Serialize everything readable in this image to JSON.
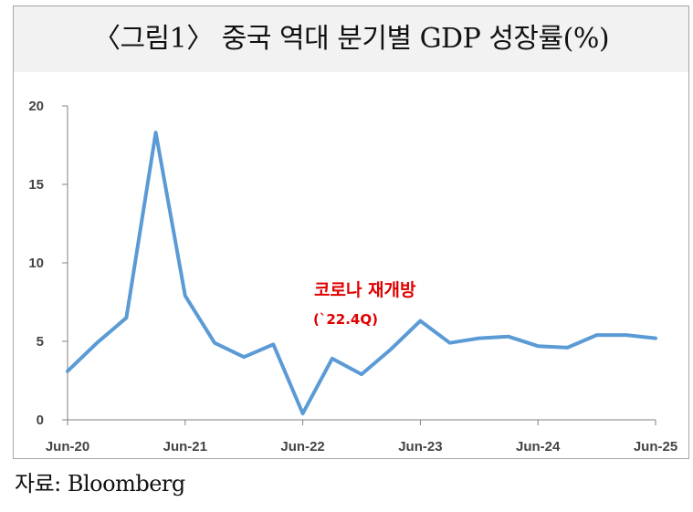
{
  "title": "〈그림1〉 중국 역대 분기별 GDP 성장률(%)",
  "source": "자료: Bloomberg",
  "colors": {
    "line": "#5b9bd5",
    "annotation": "#e00000",
    "axis": "#808080"
  },
  "chart_data": {
    "type": "line",
    "x": [
      "2020-06",
      "2020-09",
      "2020-12",
      "2021-03",
      "2021-06",
      "2021-09",
      "2021-12",
      "2022-03",
      "2022-06",
      "2022-09",
      "2022-12",
      "2023-03",
      "2023-06",
      "2023-09",
      "2023-12",
      "2024-03",
      "2024-06",
      "2024-09",
      "2024-12",
      "2025-03",
      "2025-06"
    ],
    "series": [
      {
        "values": [
          3.1,
          4.9,
          6.5,
          18.3,
          7.9,
          4.9,
          4.0,
          4.8,
          0.4,
          3.9,
          2.9,
          4.5,
          6.3,
          4.9,
          5.2,
          5.3,
          4.7,
          4.6,
          5.4,
          5.4,
          5.2
        ]
      }
    ],
    "ylim": [
      0,
      20
    ],
    "yticks": [
      0,
      5,
      10,
      15,
      20
    ],
    "xtick_labels": [
      "Jun-20",
      "Jun-21",
      "Jun-22",
      "Jun-23",
      "Jun-24",
      "Jun-25"
    ],
    "xtick_index": [
      0,
      4,
      8,
      12,
      16,
      20
    ],
    "annotations": [
      {
        "text": "코로나 재개방",
        "subtext": "(`22.4Q)"
      }
    ],
    "legend": "none",
    "grid": false
  }
}
